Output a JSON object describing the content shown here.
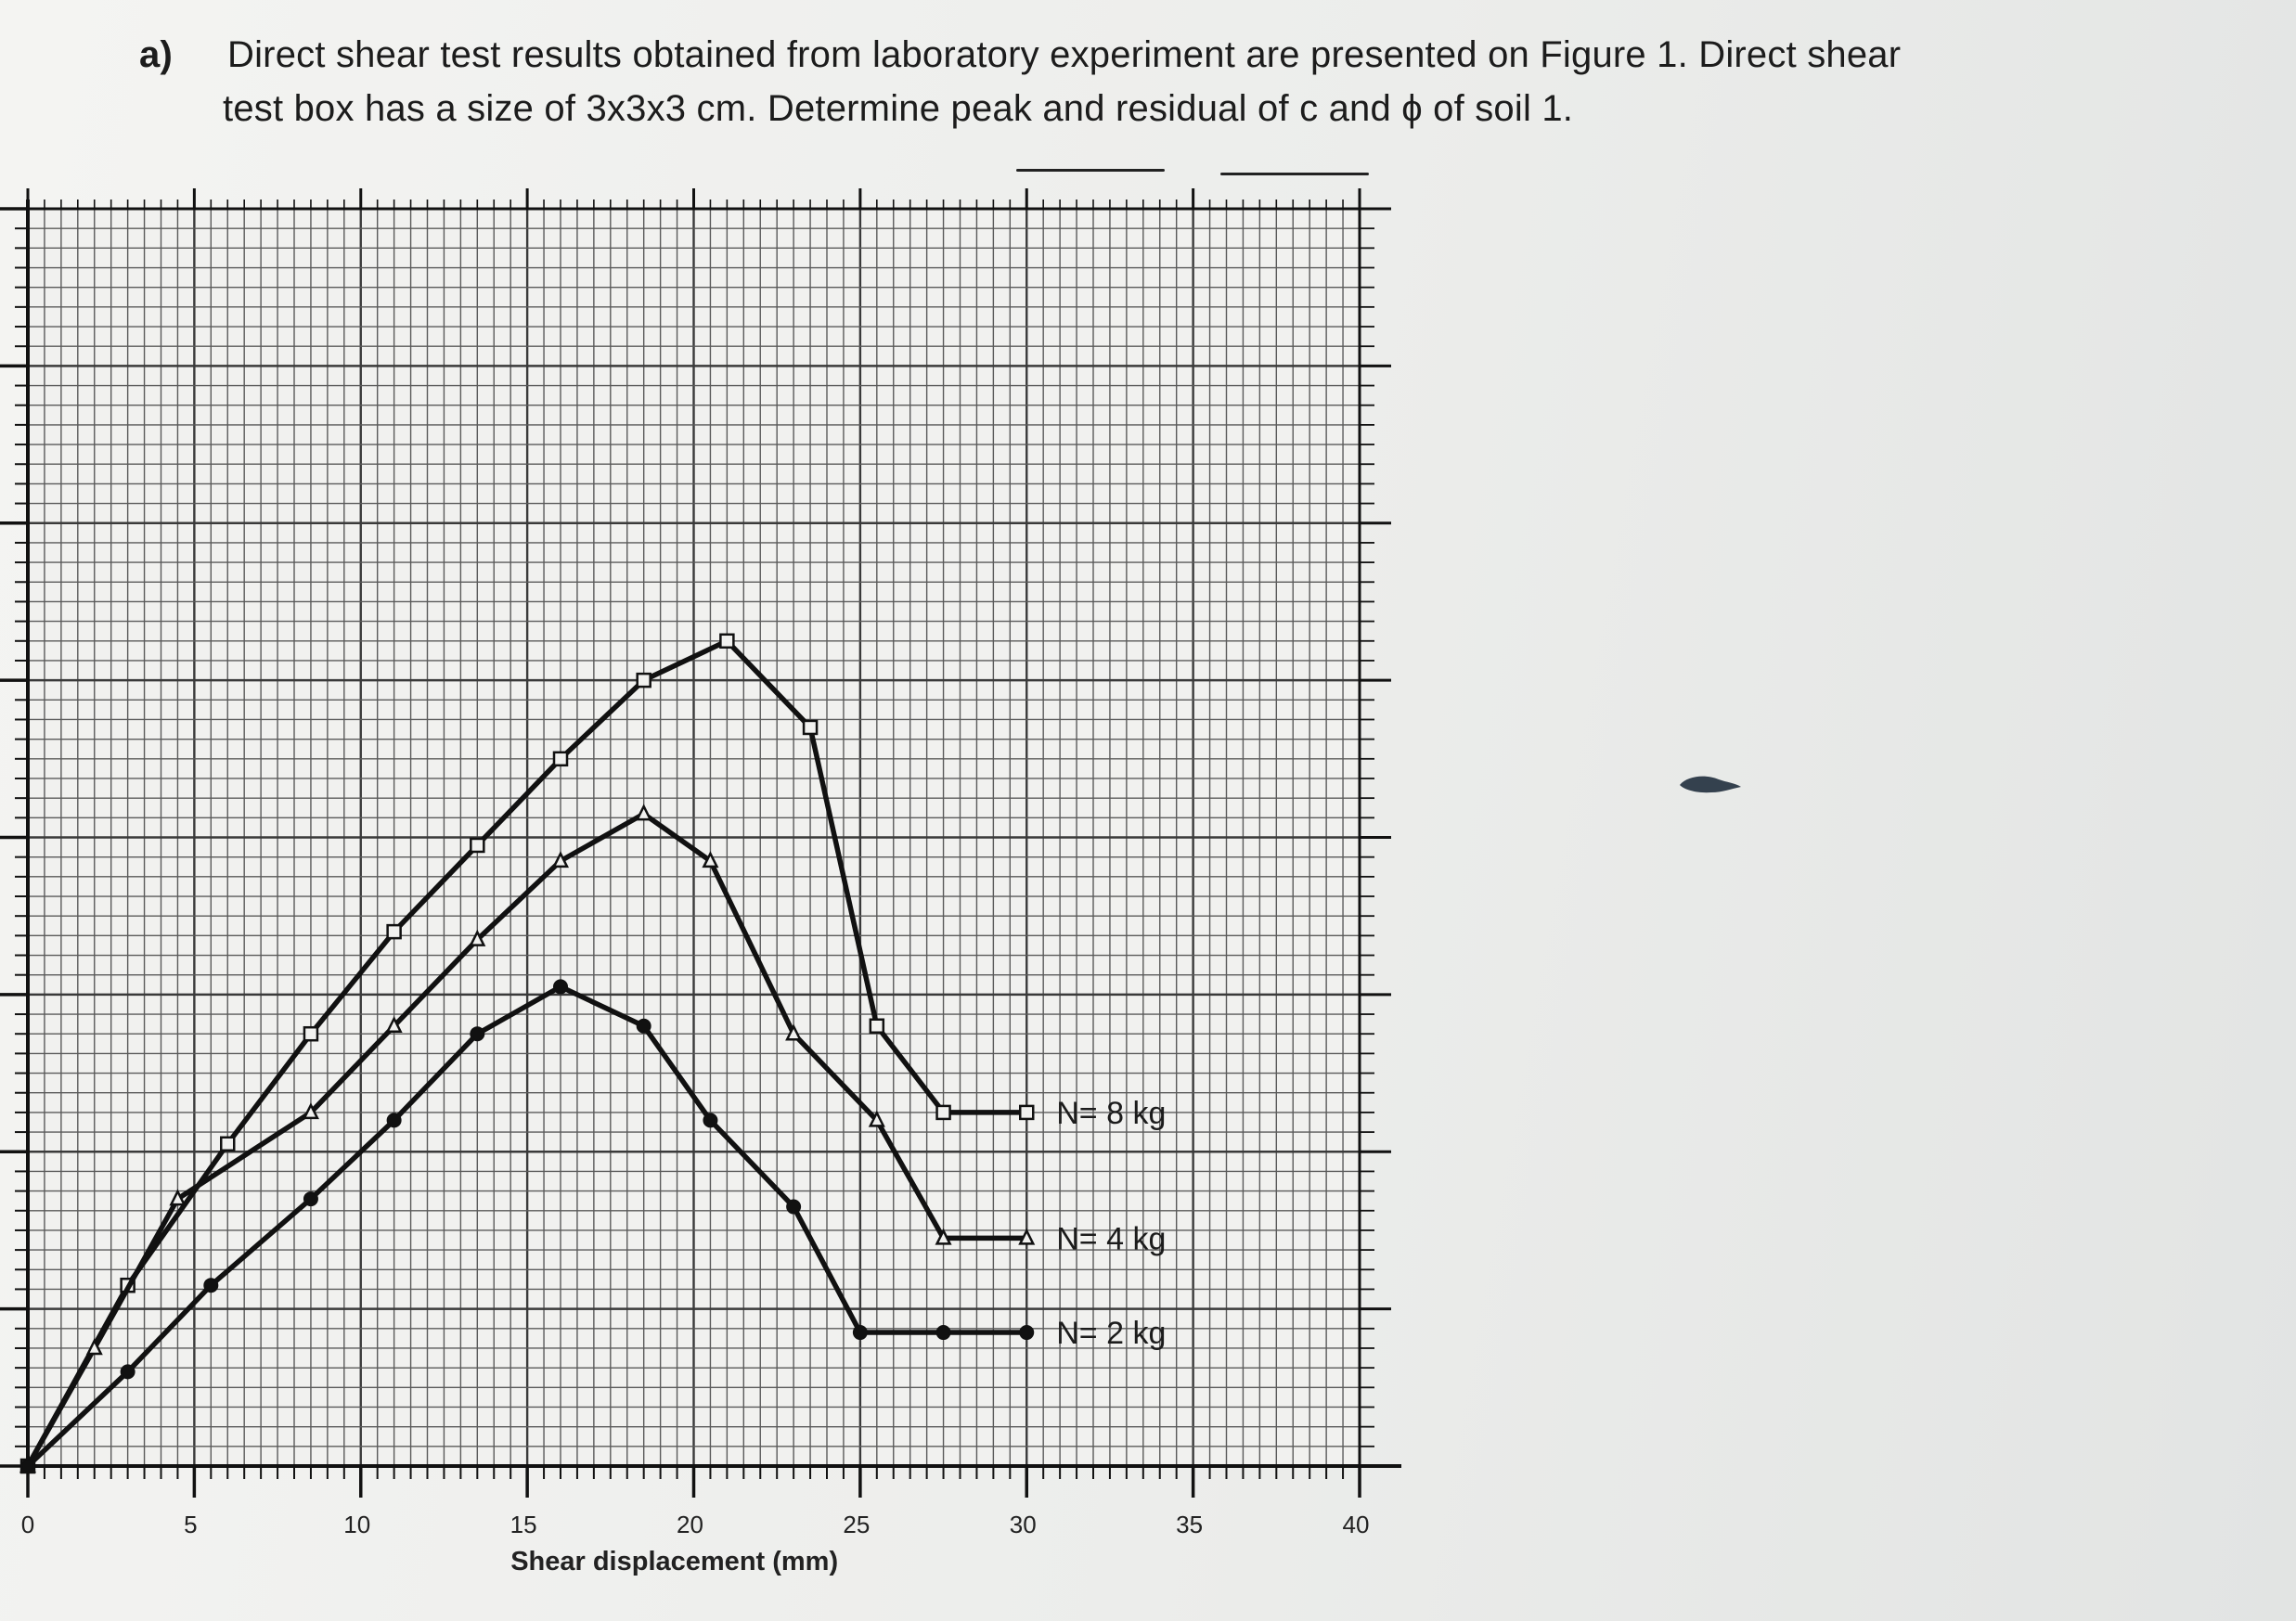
{
  "question": {
    "label": "a)",
    "line1": "Direct shear test results obtained from laboratory experiment are presented on  Figure 1. Direct shear",
    "line2": "test box has a size of 3x3x3 cm. Determine peak and residual of c and ϕ of soil 1."
  },
  "chart_data": {
    "type": "line",
    "title": "",
    "xlabel": "Shear displacement (mm)",
    "ylabel": "",
    "xlim": [
      0,
      40
    ],
    "ylim": [
      0,
      16
    ],
    "grid": true,
    "x_ticks": [
      0,
      5,
      10,
      15,
      20,
      25,
      30,
      35,
      40
    ],
    "y_ticks": [
      4,
      6,
      8,
      10,
      12,
      14,
      16
    ],
    "series": [
      {
        "name": "N= 8 kg",
        "x": [
          0,
          3,
          6,
          8.5,
          11,
          13.5,
          16,
          18.5,
          21,
          23.5,
          25.5,
          27.5,
          30
        ],
        "y": [
          0,
          2.3,
          4.1,
          5.5,
          6.8,
          7.9,
          9.0,
          10.0,
          10.5,
          9.4,
          5.6,
          4.5,
          4.5
        ]
      },
      {
        "name": "N= 4 kg",
        "x": [
          0,
          2,
          4.5,
          8.5,
          11,
          13.5,
          16,
          18.5,
          20.5,
          23,
          25.5,
          27.5,
          30
        ],
        "y": [
          0,
          1.5,
          3.4,
          4.5,
          5.6,
          6.7,
          7.7,
          8.3,
          7.7,
          5.5,
          4.4,
          2.9,
          2.9
        ]
      },
      {
        "name": "N= 2 kg",
        "x": [
          0,
          3,
          5.5,
          8.5,
          11,
          13.5,
          16,
          18.5,
          20.5,
          23,
          25,
          27.5,
          30
        ],
        "y": [
          0,
          1.2,
          2.3,
          3.4,
          4.4,
          5.5,
          6.1,
          5.6,
          4.4,
          3.3,
          1.7,
          1.7,
          1.7
        ]
      }
    ]
  }
}
